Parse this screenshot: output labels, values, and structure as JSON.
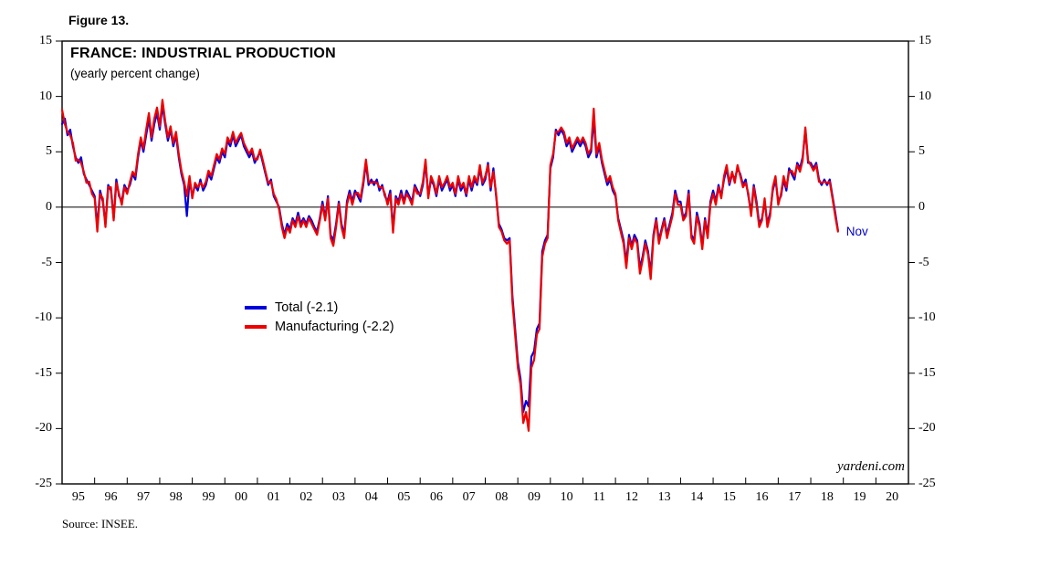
{
  "figure_label": "Figure 13.",
  "source": "Source: INSEE.",
  "watermark": "yardeni.com",
  "chart_data": {
    "type": "line",
    "title": "FRANCE: INDUSTRIAL PRODUCTION",
    "subtitle": "(yearly percent change)",
    "xlabel": "",
    "ylabel": "",
    "ylim": [
      -25,
      15
    ],
    "ytick_step": 5,
    "ytick_labels": [
      "15",
      "10",
      "5",
      "0",
      "-5",
      "-10",
      "-15",
      "-20",
      "-25"
    ],
    "x_year_labels": [
      "95",
      "96",
      "97",
      "98",
      "99",
      "00",
      "01",
      "02",
      "03",
      "04",
      "05",
      "06",
      "07",
      "08",
      "09",
      "10",
      "11",
      "12",
      "13",
      "14",
      "15",
      "16",
      "17",
      "18",
      "19",
      "20"
    ],
    "start": "1995-01",
    "end": "2018-11",
    "frequency": "monthly",
    "grid": false,
    "legend_position": "inside-left-middle",
    "last_point_label": "Nov",
    "last_point_label_color": "#0000cc",
    "zero_line": true,
    "series": [
      {
        "name": "Total",
        "legend_label": "Total (-2.1)",
        "last_value": -2.1,
        "color": "#0000dd",
        "values": [
          7.5,
          8,
          6.5,
          7,
          5.5,
          4.5,
          4,
          4.5,
          3,
          2.5,
          2,
          1.5,
          1,
          -1.8,
          1.5,
          0.5,
          -1.5,
          2,
          1.5,
          -1,
          2.5,
          1,
          0.5,
          2,
          1.5,
          2,
          3,
          2.5,
          4.5,
          6,
          5,
          6.5,
          8,
          6,
          7.5,
          8.5,
          7,
          9.2,
          7.5,
          6,
          7,
          5.5,
          6.5,
          4.5,
          3,
          2,
          -0.8,
          2.5,
          1,
          2,
          1.5,
          2.5,
          1.5,
          2,
          3,
          2.5,
          3.5,
          4.5,
          4,
          5,
          4.5,
          6,
          5.5,
          6.5,
          5.5,
          6,
          6.5,
          5.5,
          5,
          4.5,
          5,
          4,
          4.5,
          5,
          4,
          3,
          2,
          2.5,
          1,
          0.5,
          0,
          -1.5,
          -2.5,
          -1.5,
          -2,
          -1,
          -1.5,
          -0.5,
          -1.5,
          -1,
          -1.5,
          -0.8,
          -1.2,
          -1.8,
          -2.2,
          -1,
          0.5,
          -1,
          1,
          -2.5,
          -3,
          -1.5,
          0.5,
          -1.5,
          -2.5,
          0.5,
          1.5,
          0.5,
          1.5,
          1,
          0.5,
          2,
          4,
          2,
          2.5,
          2,
          2.5,
          1.5,
          2,
          1,
          0.5,
          1.5,
          -2,
          1,
          0.5,
          1.5,
          0.5,
          1.5,
          1,
          0.5,
          2,
          1.5,
          1,
          2,
          4,
          1,
          2.5,
          2,
          1,
          2.5,
          1.5,
          2,
          2.5,
          1.5,
          2,
          1,
          2.5,
          1.5,
          2,
          1,
          2.5,
          1.5,
          2.5,
          2,
          3.5,
          2,
          2.5,
          4,
          1.5,
          3.5,
          1,
          -1.5,
          -2,
          -2.8,
          -3,
          -2.8,
          -8,
          -11,
          -14,
          -15.5,
          -18.5,
          -17.5,
          -18,
          -13.5,
          -13,
          -11,
          -10.5,
          -4,
          -3,
          -2.5,
          3.5,
          4.5,
          7,
          6.5,
          7,
          6.5,
          5.5,
          6,
          5,
          5.5,
          6,
          5.5,
          6,
          5.5,
          4.5,
          5,
          8,
          4.5,
          5.5,
          4,
          3,
          2,
          2.5,
          1.5,
          1,
          -1,
          -2,
          -3,
          -5,
          -2.5,
          -3.5,
          -2.5,
          -3,
          -5.5,
          -4.5,
          -3,
          -4,
          -6,
          -2.5,
          -1,
          -3,
          -2,
          -1,
          -2.5,
          -1.5,
          -0.5,
          1.5,
          0.5,
          0.5,
          -1,
          -0.5,
          1.5,
          -2.5,
          -3,
          -0.5,
          -1.5,
          -3.5,
          -1,
          -2.5,
          0.5,
          1.5,
          0.5,
          2,
          1,
          2.5,
          3.5,
          2,
          3,
          2.5,
          3.5,
          3,
          2,
          2.5,
          1,
          -0.5,
          2,
          0.5,
          -1.5,
          -1,
          0.5,
          -1.5,
          -0.5,
          1.5,
          2.5,
          0.5,
          1,
          2.5,
          1.5,
          3.5,
          3,
          2.5,
          4,
          3.5,
          4.5,
          7,
          4,
          4,
          3.5,
          4,
          2.5,
          2,
          2.5,
          2,
          2.5,
          1,
          -0.5,
          -2.1
        ]
      },
      {
        "name": "Manufacturing",
        "legend_label": "Manufacturing (-2.2)",
        "last_value": -2.2,
        "color": "#ee0000",
        "values": [
          8.8,
          7.5,
          6.8,
          6.5,
          5.8,
          4.2,
          4.3,
          4,
          3.2,
          2.2,
          2.3,
          1.2,
          0.8,
          -2.2,
          1.2,
          0.8,
          -1.8,
          1.8,
          1.8,
          -1.2,
          2.2,
          1.2,
          0.2,
          1.8,
          1.2,
          2.3,
          3.2,
          2.8,
          4.8,
          6.3,
          5.3,
          7,
          8.5,
          6.3,
          8,
          9,
          7.3,
          9.7,
          7.8,
          6.3,
          7.3,
          5.8,
          6.8,
          4.8,
          3.3,
          2.3,
          1,
          2.8,
          0.8,
          2.2,
          1.8,
          2.2,
          1.8,
          2.3,
          3.3,
          2.8,
          3.8,
          4.8,
          4.3,
          5.3,
          4.8,
          6.3,
          5.8,
          6.8,
          5.8,
          6.3,
          6.7,
          5.8,
          5.3,
          4.8,
          5.3,
          4.3,
          4.3,
          5.2,
          4.2,
          3.2,
          2.2,
          2.3,
          1.2,
          0.7,
          -0.2,
          -1.8,
          -2.8,
          -1.8,
          -2.3,
          -1.2,
          -1.8,
          -0.8,
          -1.8,
          -1.2,
          -1.8,
          -1,
          -1.5,
          -2,
          -2.5,
          -1.2,
          0.2,
          -1.2,
          0.8,
          -2.8,
          -3.5,
          -1.8,
          0.3,
          -1.8,
          -2.8,
          0.2,
          1.2,
          0.2,
          1.2,
          1.3,
          0.8,
          2.3,
          4.3,
          2.3,
          2.2,
          2.3,
          2.2,
          1.8,
          1.8,
          1.2,
          0.2,
          1.2,
          -2.3,
          0.8,
          0.2,
          1.2,
          0.3,
          1.2,
          0.8,
          0.2,
          1.8,
          1.2,
          1.2,
          2.3,
          4.3,
          0.8,
          2.8,
          2.2,
          1.2,
          2.8,
          1.8,
          2.2,
          2.8,
          1.8,
          2.2,
          1.2,
          2.8,
          1.8,
          2.2,
          1.2,
          2.8,
          1.8,
          2.8,
          2.2,
          3.8,
          2.2,
          2.8,
          3.8,
          1.8,
          3.2,
          1.2,
          -1.8,
          -2.2,
          -3,
          -3.3,
          -3,
          -8.5,
          -11.5,
          -14.5,
          -16,
          -19.5,
          -18.5,
          -20.2,
          -14.5,
          -13.8,
          -11.5,
          -11,
          -4.5,
          -3.3,
          -2.8,
          3.8,
          4.8,
          6.8,
          6.8,
          7.2,
          6.8,
          5.8,
          6.3,
          5.3,
          5.8,
          6.3,
          5.8,
          6.3,
          5.8,
          4.8,
          5.3,
          8.9,
          4.8,
          5.8,
          4.3,
          3.3,
          2.3,
          2.8,
          1.8,
          1.2,
          -1.2,
          -2.3,
          -3.3,
          -5.5,
          -2.8,
          -3.8,
          -2.8,
          -3.3,
          -6,
          -4.8,
          -3.3,
          -4.3,
          -6.5,
          -2.8,
          -1.2,
          -3.3,
          -2.2,
          -1.2,
          -2.8,
          -1.8,
          -0.8,
          1.2,
          0.2,
          0.2,
          -1.2,
          -0.8,
          1.2,
          -2.8,
          -3.3,
          -0.8,
          -1.8,
          -3.8,
          -1.2,
          -2.8,
          0.2,
          1.2,
          0.2,
          1.8,
          0.8,
          2.8,
          3.8,
          2.2,
          3.2,
          2.2,
          3.8,
          2.8,
          1.8,
          2.2,
          1.2,
          -0.8,
          1.8,
          0.2,
          -1.8,
          -1.2,
          0.8,
          -1.8,
          -0.8,
          1.8,
          2.8,
          0.2,
          1.2,
          2.8,
          1.8,
          3.2,
          3.3,
          2.8,
          3.8,
          3.2,
          4.2,
          7.2,
          4.2,
          3.8,
          3.3,
          3.8,
          2.3,
          2.2,
          2.3,
          2.2,
          2.3,
          0.8,
          -0.8,
          -2.2
        ]
      }
    ]
  }
}
